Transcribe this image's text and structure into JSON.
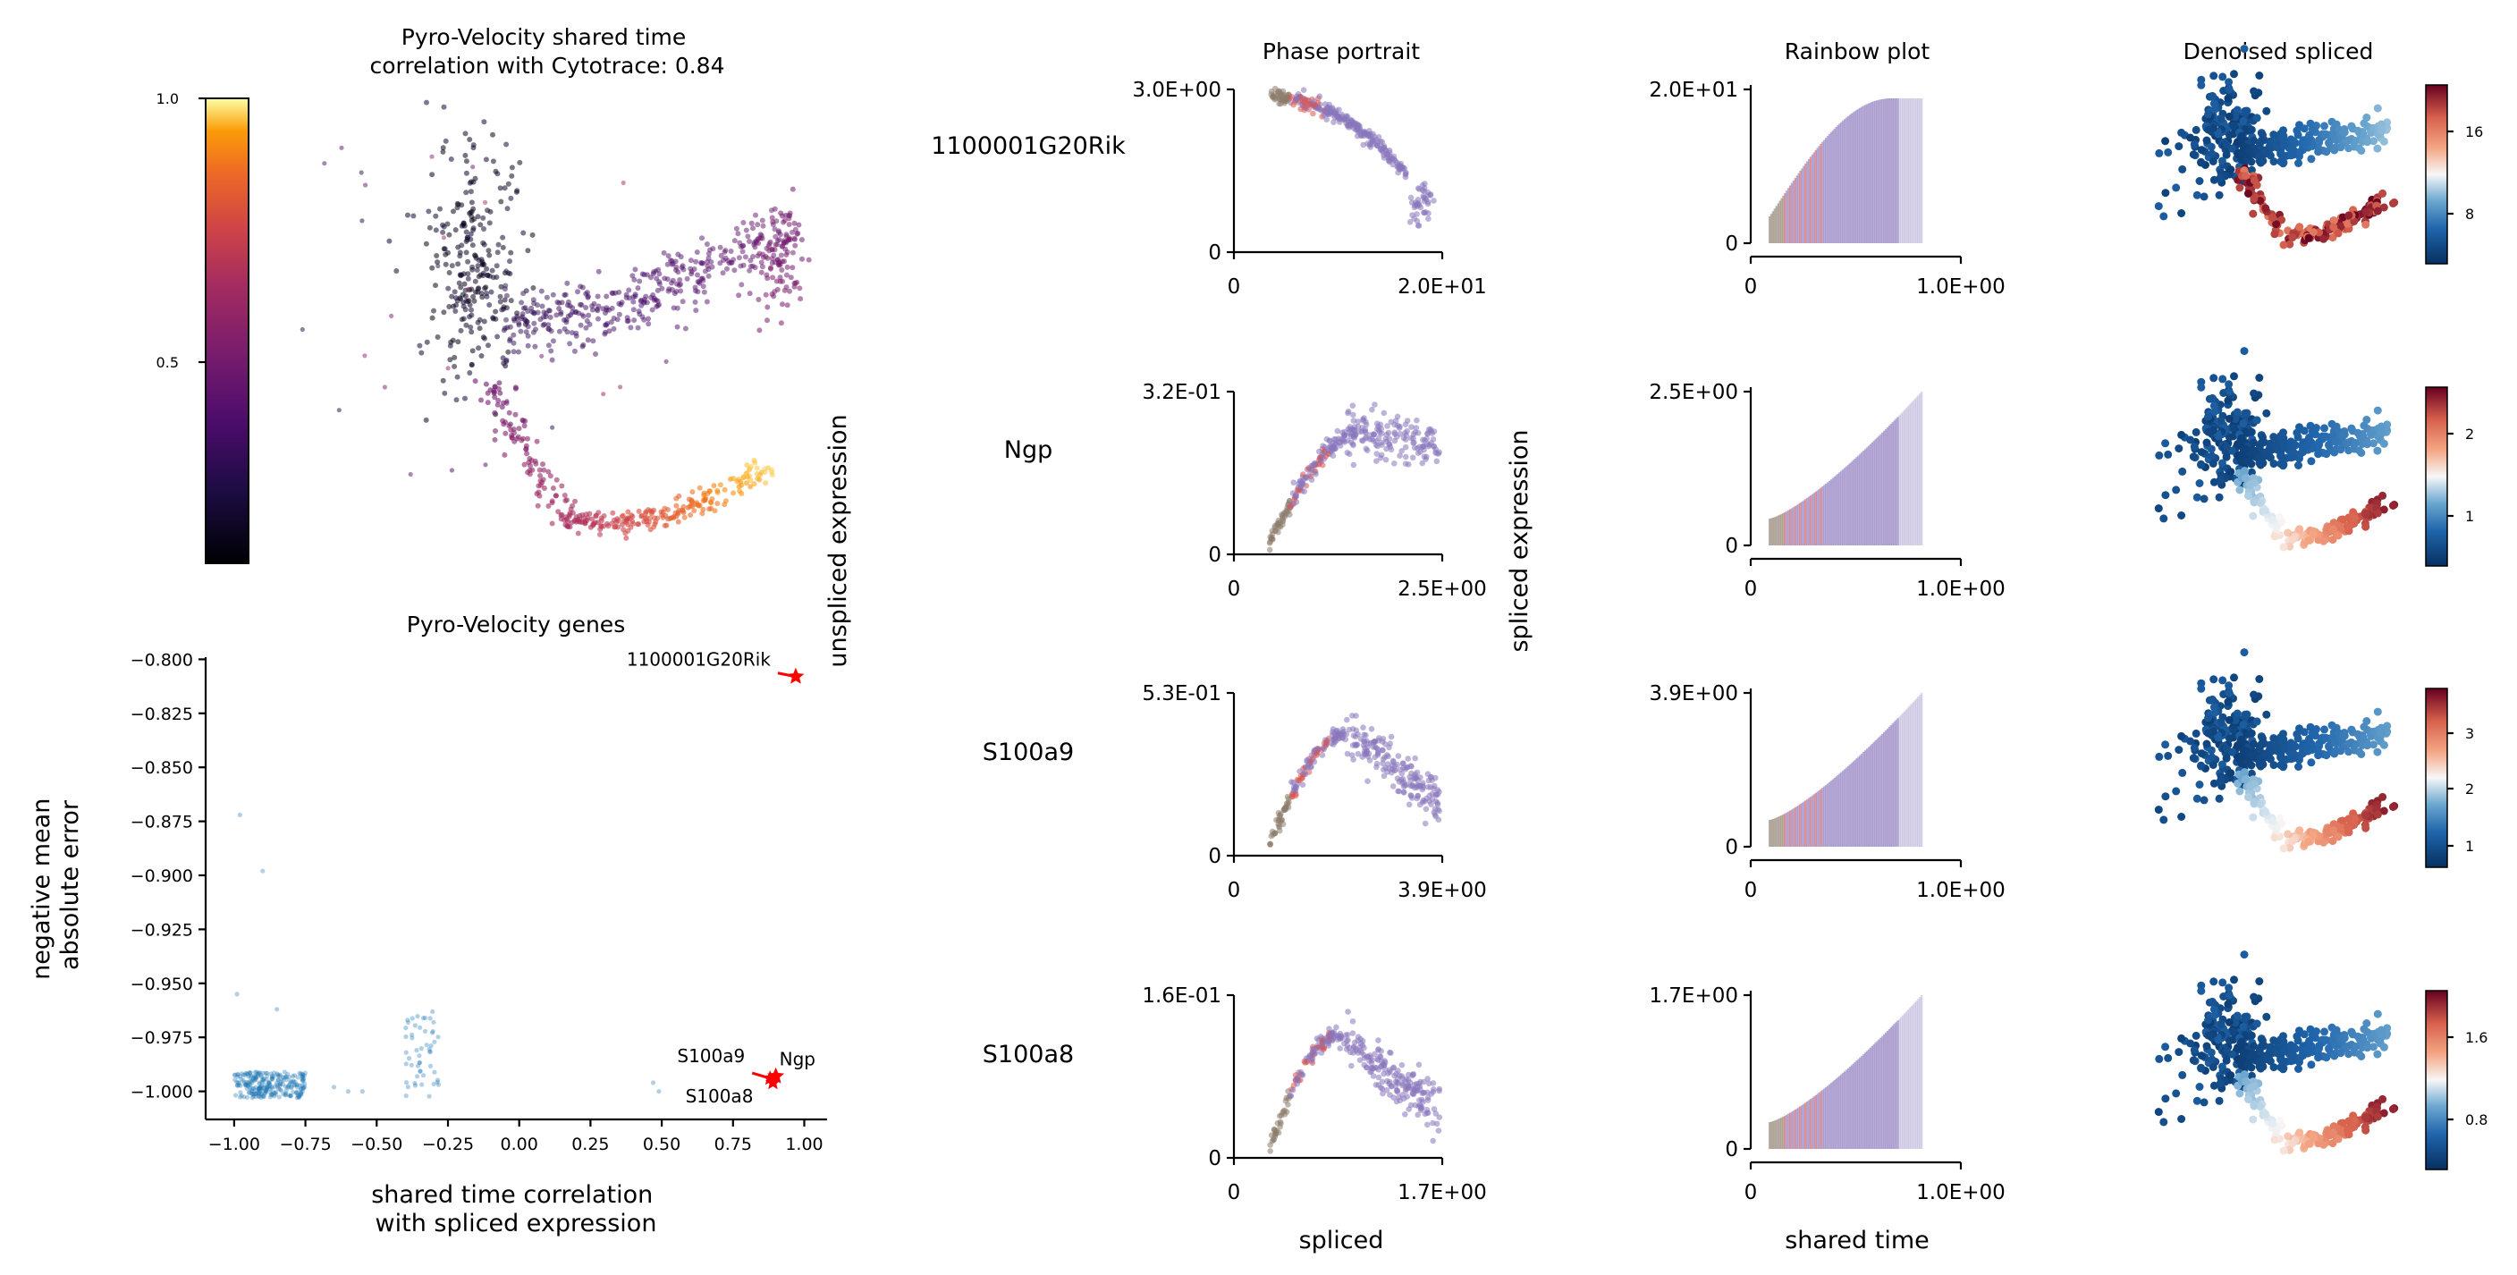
{
  "figure": {
    "top_left_title": "Pyro-Velocity shared time\ncorrelation with Cytotrace: 0.84",
    "colorbar_ticks": [
      "1.0",
      "0.5"
    ],
    "volcano_title": "Pyro-Velocity genes",
    "volcano_xlabel": "shared time correlation\nwith spliced expression",
    "volcano_ylabel": "negative mean\nabsolute error",
    "col_titles": [
      "Phase portrait",
      "Rainbow plot",
      "Denoised spliced"
    ],
    "phase_xlabel": "spliced",
    "phase_ylabel": "unspliced expression",
    "rainbow_xlabel": "shared time",
    "rainbow_ylabel": "spliced expression",
    "colors": {
      "brown": "#8c7b6b",
      "purple": "#8877bb",
      "red": "#d9534f",
      "blue_points": "#1f77b4",
      "highlight": "#ff0000"
    }
  },
  "chart_data": [
    {
      "type": "scatter",
      "name": "umap_shared_time",
      "title": "Pyro-Velocity shared time\ncorrelation with Cytotrace: 0.84",
      "colormap": "inferno",
      "colorbar": {
        "ticks": [
          1.0,
          0.5
        ]
      }
    },
    {
      "type": "scatter",
      "name": "volcano",
      "title": "Pyro-Velocity genes",
      "xlabel": "shared time correlation\nwith spliced expression",
      "ylabel": "negative mean\nabsolute error",
      "xlim": [
        -1.1,
        1.08
      ],
      "ylim": [
        -1.013,
        -0.799
      ],
      "xticks": [
        -1.0,
        -0.75,
        -0.5,
        -0.25,
        0.0,
        0.25,
        0.5,
        0.75,
        1.0
      ],
      "xticklabels": [
        "−1.00",
        "−0.75",
        "−0.50",
        "−0.25",
        "0.00",
        "0.25",
        "0.50",
        "0.75",
        "1.00"
      ],
      "yticks": [
        -0.8,
        -0.825,
        -0.85,
        -0.875,
        -0.9,
        -0.925,
        -0.95,
        -0.975,
        -1.0
      ],
      "yticklabels": [
        "−0.800",
        "−0.825",
        "−0.850",
        "−0.875",
        "−0.900",
        "−0.925",
        "−0.950",
        "−0.975",
        "−1.000"
      ],
      "highlighted": [
        {
          "gene": "1100001G20Rik",
          "x": 0.97,
          "y": -0.808
        },
        {
          "gene": "Ngp",
          "x": 0.9,
          "y": -0.993
        },
        {
          "gene": "S100a9",
          "x": 0.88,
          "y": -0.994
        },
        {
          "gene": "S100a8",
          "x": 0.89,
          "y": -0.996
        }
      ]
    },
    {
      "type": "panel_grid",
      "name": "gene_panels",
      "genes": [
        {
          "name": "1100001G20Rik",
          "phase_ymax": "3.0E+00",
          "phase_xmax": "2.0E+01",
          "rainbow_ymax": "2.0E+01",
          "rainbow_xmax": "1.0E+00",
          "cbar_ticks": [
            "16",
            "8"
          ]
        },
        {
          "name": "Ngp",
          "phase_ymax": "3.2E-01",
          "phase_xmax": "2.5E+00",
          "rainbow_ymax": "2.5E+00",
          "rainbow_xmax": "1.0E+00",
          "cbar_ticks": [
            "2",
            "1"
          ]
        },
        {
          "name": "S100a9",
          "phase_ymax": "5.3E-01",
          "phase_xmax": "3.9E+00",
          "rainbow_ymax": "3.9E+00",
          "rainbow_xmax": "1.0E+00",
          "cbar_ticks": [
            "3",
            "2",
            "1"
          ]
        },
        {
          "name": "S100a8",
          "phase_ymax": "1.6E-01",
          "phase_xmax": "1.7E+00",
          "rainbow_ymax": "1.7E+00",
          "rainbow_xmax": "1.0E+00",
          "cbar_ticks": [
            "1.6",
            "0.8"
          ]
        }
      ],
      "zero_label": "0"
    }
  ]
}
